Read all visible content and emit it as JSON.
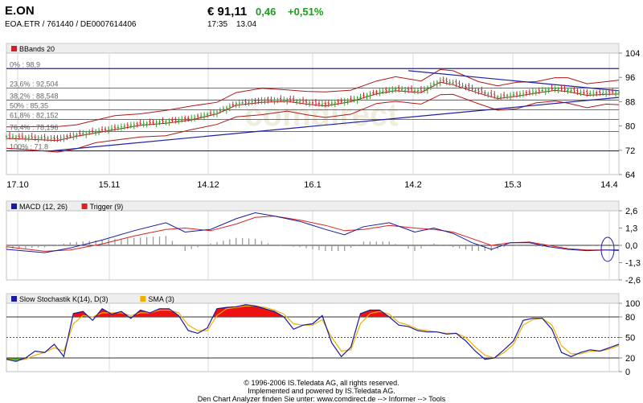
{
  "header": {
    "symbol": "E.ON",
    "ids": "EOA.ETR  /  761440  /  DE0007614406",
    "price": "€ 91,11",
    "change": "0,46",
    "change_pct": "+0,51%",
    "time": "17:35",
    "date": "13.04"
  },
  "watermark": "comdirect",
  "colors": {
    "candle_up": "#2f9f2f",
    "candle_down": "#cc2222",
    "band": "#b01818",
    "trend": "#1f1fa8",
    "macd": "#1a1aa0",
    "trigger": "#dd2222",
    "stoch": "#1a1aa0",
    "sma": "#f0b000",
    "fill_red": "#ee1111",
    "fill_green": "#119911",
    "grid": "#d8d8d8",
    "panel_bg": "#f4f4f4"
  },
  "chart_data": [
    {
      "type": "candlestick",
      "legend": [
        "BBands 20"
      ],
      "x_ticks": [
        "17.10",
        "15.11",
        "14.12",
        "16.1",
        "14.2",
        "15.3",
        "14.4"
      ],
      "ylim": [
        64,
        104
      ],
      "y_ticks": [
        104,
        96,
        88,
        80,
        72,
        64
      ],
      "fib_levels": [
        {
          "label": "0% : 98,9",
          "value": 98.9
        },
        {
          "label": "23,6% : 92,504",
          "value": 92.504
        },
        {
          "label": "38,2% : 88,548",
          "value": 88.548
        },
        {
          "label": "50% : 85,35",
          "value": 85.35
        },
        {
          "label": "61,8% : 82,152",
          "value": 82.152
        },
        {
          "label": "76,4% : 78,196",
          "value": 78.196
        },
        {
          "label": "100% : 71,8",
          "value": 71.8
        }
      ],
      "close_points": [
        [
          0,
          76.5
        ],
        [
          8,
          76.2
        ],
        [
          16,
          75.8
        ],
        [
          22,
          77.2
        ],
        [
          28,
          78.3
        ],
        [
          34,
          79.4
        ],
        [
          42,
          80.8
        ],
        [
          50,
          81.5
        ],
        [
          58,
          82.6
        ],
        [
          66,
          84.6
        ],
        [
          72,
          87.4
        ],
        [
          80,
          88.4
        ],
        [
          88,
          88.7
        ],
        [
          94,
          87.8
        ],
        [
          100,
          87.2
        ],
        [
          108,
          88.6
        ],
        [
          116,
          91.2
        ],
        [
          122,
          92.2
        ],
        [
          130,
          91.6
        ],
        [
          136,
          95.0
        ],
        [
          140,
          94.2
        ],
        [
          148,
          91.4
        ],
        [
          154,
          89.6
        ],
        [
          160,
          90.4
        ],
        [
          166,
          91.4
        ],
        [
          172,
          92.3
        ],
        [
          176,
          91.9
        ],
        [
          182,
          90.7
        ],
        [
          188,
          91.0
        ],
        [
          192,
          91.1
        ]
      ]
    },
    {
      "type": "line",
      "legend": [
        "MACD (12, 26)",
        "Trigger (9)"
      ],
      "ylim": [
        -2.6,
        2.6
      ],
      "y_ticks": [
        "2,6",
        "1,3",
        "0,0",
        "-1,3",
        "-2,6"
      ],
      "series": [
        {
          "name": "MACD (12, 26)",
          "points": [
            [
              0,
              -0.3
            ],
            [
              12,
              -0.55
            ],
            [
              20,
              -0.2
            ],
            [
              30,
              0.4
            ],
            [
              40,
              1.1
            ],
            [
              50,
              1.7
            ],
            [
              56,
              1.0
            ],
            [
              64,
              1.2
            ],
            [
              72,
              2.0
            ],
            [
              78,
              2.45
            ],
            [
              84,
              2.2
            ],
            [
              92,
              1.8
            ],
            [
              100,
              1.2
            ],
            [
              106,
              0.8
            ],
            [
              112,
              1.4
            ],
            [
              120,
              1.7
            ],
            [
              128,
              1.0
            ],
            [
              134,
              1.3
            ],
            [
              140,
              0.9
            ],
            [
              146,
              0.2
            ],
            [
              152,
              -0.3
            ],
            [
              158,
              0.2
            ],
            [
              164,
              0.2
            ],
            [
              170,
              -0.1
            ],
            [
              176,
              -0.3
            ],
            [
              182,
              -0.4
            ],
            [
              188,
              -0.35
            ],
            [
              192,
              -0.35
            ]
          ]
        },
        {
          "name": "Trigger (9)",
          "points": [
            [
              0,
              -0.1
            ],
            [
              12,
              -0.45
            ],
            [
              20,
              -0.35
            ],
            [
              30,
              0.1
            ],
            [
              40,
              0.7
            ],
            [
              50,
              1.2
            ],
            [
              56,
              1.3
            ],
            [
              64,
              1.1
            ],
            [
              72,
              1.6
            ],
            [
              78,
              2.1
            ],
            [
              84,
              2.2
            ],
            [
              92,
              1.9
            ],
            [
              100,
              1.5
            ],
            [
              106,
              1.1
            ],
            [
              112,
              1.2
            ],
            [
              120,
              1.5
            ],
            [
              128,
              1.3
            ],
            [
              134,
              1.2
            ],
            [
              140,
              1.0
            ],
            [
              146,
              0.5
            ],
            [
              152,
              0.0
            ],
            [
              158,
              0.2
            ],
            [
              164,
              0.25
            ],
            [
              170,
              0.0
            ],
            [
              176,
              -0.25
            ],
            [
              182,
              -0.35
            ],
            [
              188,
              -0.35
            ],
            [
              192,
              -0.4
            ]
          ]
        }
      ]
    },
    {
      "type": "line",
      "legend": [
        "Slow Stochastik K(14), D(3)",
        "SMA (3)"
      ],
      "ylim": [
        0,
        100
      ],
      "y_ticks": [
        100,
        80,
        50,
        20,
        0
      ],
      "series": [
        {
          "name": "Slow Stochastik K(14), D(3)",
          "points": [
            [
              0,
              18
            ],
            [
              3,
              15
            ],
            [
              6,
              20
            ],
            [
              9,
              30
            ],
            [
              12,
              28
            ],
            [
              15,
              40
            ],
            [
              18,
              22
            ],
            [
              21,
              85
            ],
            [
              24,
              88
            ],
            [
              27,
              75
            ],
            [
              30,
              92
            ],
            [
              33,
              84
            ],
            [
              36,
              88
            ],
            [
              39,
              78
            ],
            [
              42,
              90
            ],
            [
              45,
              86
            ],
            [
              48,
              92
            ],
            [
              51,
              92
            ],
            [
              54,
              82
            ],
            [
              57,
              60
            ],
            [
              60,
              56
            ],
            [
              63,
              64
            ],
            [
              66,
              92
            ],
            [
              69,
              94
            ],
            [
              72,
              95
            ],
            [
              75,
              98
            ],
            [
              78,
              96
            ],
            [
              81,
              92
            ],
            [
              84,
              88
            ],
            [
              87,
              80
            ],
            [
              90,
              62
            ],
            [
              93,
              68
            ],
            [
              96,
              70
            ],
            [
              99,
              82
            ],
            [
              102,
              42
            ],
            [
              105,
              22
            ],
            [
              108,
              36
            ],
            [
              111,
              85
            ],
            [
              114,
              90
            ],
            [
              117,
              90
            ],
            [
              120,
              80
            ],
            [
              123,
              68
            ],
            [
              126,
              66
            ],
            [
              129,
              60
            ],
            [
              132,
              58
            ],
            [
              135,
              58
            ],
            [
              138,
              55
            ],
            [
              141,
              56
            ],
            [
              144,
              45
            ],
            [
              147,
              30
            ],
            [
              150,
              18
            ],
            [
              153,
              20
            ],
            [
              156,
              32
            ],
            [
              159,
              45
            ],
            [
              162,
              75
            ],
            [
              165,
              78
            ],
            [
              168,
              78
            ],
            [
              171,
              62
            ],
            [
              174,
              28
            ],
            [
              177,
              22
            ],
            [
              180,
              28
            ],
            [
              183,
              32
            ],
            [
              186,
              30
            ],
            [
              189,
              35
            ],
            [
              192,
              40
            ]
          ]
        },
        {
          "name": "SMA (3)",
          "points": [
            [
              0,
              18
            ],
            [
              3,
              17
            ],
            [
              6,
              18
            ],
            [
              9,
              24
            ],
            [
              12,
              28
            ],
            [
              15,
              35
            ],
            [
              18,
              30
            ],
            [
              21,
              70
            ],
            [
              24,
              82
            ],
            [
              27,
              80
            ],
            [
              30,
              86
            ],
            [
              33,
              86
            ],
            [
              36,
              86
            ],
            [
              39,
              82
            ],
            [
              42,
              86
            ],
            [
              45,
              86
            ],
            [
              48,
              90
            ],
            [
              51,
              90
            ],
            [
              54,
              86
            ],
            [
              57,
              68
            ],
            [
              60,
              60
            ],
            [
              63,
              60
            ],
            [
              66,
              82
            ],
            [
              69,
              92
            ],
            [
              72,
              94
            ],
            [
              75,
              96
            ],
            [
              78,
              96
            ],
            [
              81,
              94
            ],
            [
              84,
              90
            ],
            [
              87,
              84
            ],
            [
              90,
              70
            ],
            [
              93,
              68
            ],
            [
              96,
              68
            ],
            [
              99,
              76
            ],
            [
              102,
              50
            ],
            [
              105,
              30
            ],
            [
              108,
              32
            ],
            [
              111,
              70
            ],
            [
              114,
              85
            ],
            [
              117,
              88
            ],
            [
              120,
              84
            ],
            [
              123,
              72
            ],
            [
              126,
              68
            ],
            [
              129,
              62
            ],
            [
              132,
              60
            ],
            [
              135,
              58
            ],
            [
              138,
              56
            ],
            [
              141,
              56
            ],
            [
              144,
              50
            ],
            [
              147,
              36
            ],
            [
              150,
              24
            ],
            [
              153,
              20
            ],
            [
              156,
              28
            ],
            [
              159,
              40
            ],
            [
              162,
              68
            ],
            [
              165,
              76
            ],
            [
              168,
              78
            ],
            [
              171,
              68
            ],
            [
              174,
              38
            ],
            [
              177,
              26
            ],
            [
              180,
              26
            ],
            [
              183,
              30
            ],
            [
              186,
              30
            ],
            [
              189,
              33
            ],
            [
              192,
              38
            ]
          ]
        }
      ]
    }
  ],
  "footer": {
    "line1": "© 1996-2006 IS.Teledata AG, all rights reserved.",
    "line2": "Implemented and powered by IS.Teledata AG.",
    "line3": "Den Chart Analyzer finden Sie unter: www.comdirect.de --> Informer --> Tools"
  }
}
